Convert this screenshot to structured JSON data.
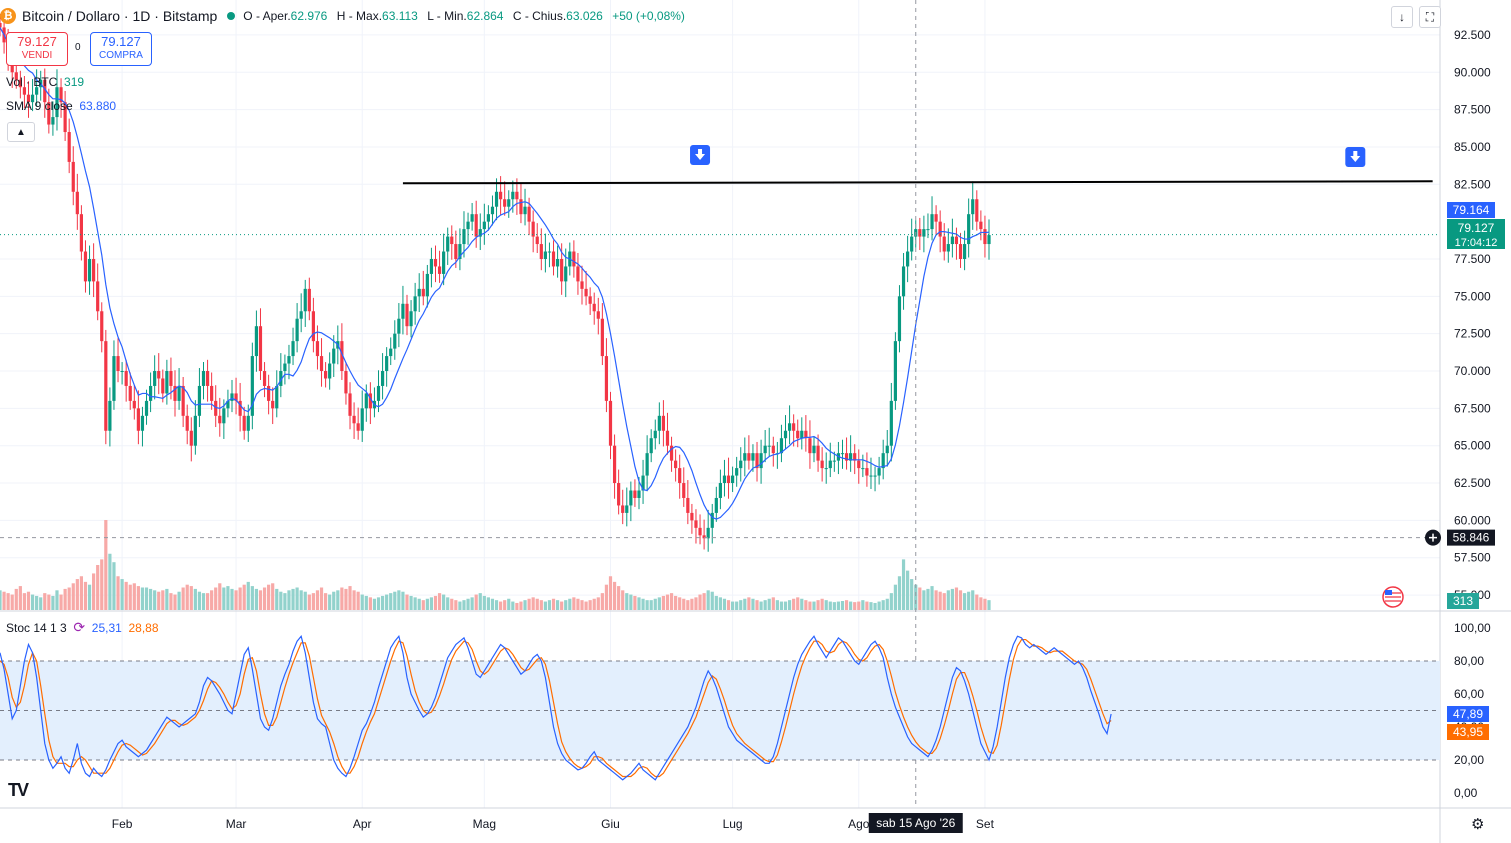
{
  "header": {
    "symbol": "Bitcoin / Dollaro · 1D · Bitstamp",
    "o_label": "O - Aper.",
    "o_value": "62.976",
    "h_label": "H - Max.",
    "h_value": "63.113",
    "l_label": "L - Min.",
    "l_value": "62.864",
    "c_label": "C - Chius.",
    "c_value": "63.026",
    "change": "+50 (+0,08%)"
  },
  "trade": {
    "sell_price": "79.127",
    "sell_label": "VENDI",
    "buy_price": "79.127",
    "buy_label": "COMPRA",
    "spread": "0"
  },
  "indicators": {
    "vol_label": "Vol · BTC",
    "vol_value": "319",
    "sma_label": "SMA 9 close",
    "sma_value": "63.880",
    "stoch_label": "Stoc 14 1 3",
    "stoch_k": "25,31",
    "stoch_d": "28,88"
  },
  "colors": {
    "up": "#089981",
    "down": "#f23645",
    "sma": "#2962ff",
    "stoch_k": "#2962ff",
    "stoch_d": "#ff6d00",
    "stoch_band": "#e3effd"
  },
  "price_axis": [
    "92.500",
    "90.000",
    "87.500",
    "85.000",
    "82.500",
    "77.500",
    "75.000",
    "72.500",
    "70.000",
    "67.500",
    "65.000",
    "62.500",
    "60.000",
    "57.500",
    "55.000"
  ],
  "stoch_axis": [
    "100,00",
    "80,00",
    "60,00",
    "40,00",
    "20,00",
    "0,00"
  ],
  "time_axis": [
    "Feb",
    "Mar",
    "Apr",
    "Mag",
    "Giu",
    "Lug",
    "Ago",
    "Set"
  ],
  "badges": {
    "sma_price": "79.164",
    "last_price": "79.127",
    "countdown": "17:04:12",
    "crosshair_price": "58.846",
    "volume": "313",
    "stoch_k": "47,89",
    "stoch_d": "43,95",
    "crosshair_date": "sab 15 Ago '26"
  },
  "chart_data": {
    "type": "candlestick",
    "resistance_level": 82500,
    "price_range": [
      54000,
      93500
    ],
    "stoch_range": [
      0,
      100
    ],
    "stoch_levels": [
      80,
      50,
      20
    ],
    "months": [
      {
        "label": "Feb",
        "day": 30
      },
      {
        "label": "Mar",
        "day": 58
      },
      {
        "label": "Apr",
        "day": 89
      },
      {
        "label": "Mag",
        "day": 119
      },
      {
        "label": "Giu",
        "day": 150
      },
      {
        "label": "Lug",
        "day": 180
      },
      {
        "label": "Ago",
        "day": 211
      },
      {
        "label": "Set",
        "day": 242
      }
    ],
    "crosshair_day": 225,
    "crosshair_price": 58846,
    "closes": [
      93000,
      92000,
      91000,
      90000,
      89500,
      89000,
      88500,
      88000,
      88500,
      89000,
      89500,
      88000,
      86500,
      87000,
      89000,
      88000,
      86000,
      84000,
      82000,
      80500,
      78000,
      76000,
      77500,
      76000,
      74000,
      72000,
      66000,
      68000,
      71000,
      70000,
      70000,
      69000,
      68000,
      67500,
      66000,
      67000,
      68000,
      69000,
      70000,
      69500,
      68500,
      70000,
      69000,
      68000,
      69000,
      67000,
      66000,
      65000,
      67000,
      69000,
      70000,
      69000,
      68000,
      67000,
      66500,
      67500,
      68000,
      68500,
      68000,
      67000,
      66000,
      67000,
      71000,
      73000,
      70000,
      69000,
      68000,
      67500,
      69000,
      70000,
      70500,
      71000,
      72000,
      73500,
      74000,
      75500,
      74000,
      72000,
      71000,
      70000,
      69500,
      70500,
      71500,
      72000,
      70000,
      68500,
      67000,
      66500,
      66000,
      67500,
      68500,
      67500,
      68000,
      69000,
      70000,
      71000,
      71500,
      72500,
      73500,
      74500,
      73000,
      74000,
      75000,
      75500,
      75000,
      76500,
      77500,
      77000,
      76500,
      78000,
      79000,
      78500,
      77500,
      78500,
      79500,
      80000,
      80500,
      79000,
      79500,
      80000,
      80500,
      81000,
      82000,
      81500,
      81000,
      81500,
      82000,
      81500,
      80500,
      81000,
      80000,
      79000,
      78500,
      77500,
      78000,
      78000,
      77000,
      77500,
      76000,
      77000,
      78000,
      77000,
      76000,
      75500,
      75000,
      74500,
      74000,
      73500,
      71000,
      68000,
      65000,
      62500,
      61000,
      60500,
      61000,
      62000,
      61500,
      62000,
      63000,
      64500,
      65500,
      66000,
      67000,
      66000,
      65000,
      64000,
      63500,
      62500,
      61500,
      60500,
      60000,
      59500,
      59000,
      58800,
      59500,
      60500,
      61500,
      62500,
      63000,
      62500,
      63000,
      63500,
      64000,
      64500,
      64000,
      64500,
      63500,
      64500,
      65000,
      65000,
      64500,
      64500,
      65500,
      66000,
      66500,
      66000,
      65500,
      66000,
      65500,
      64500,
      65000,
      64000,
      63500,
      63500,
      64000,
      64000,
      64500,
      64500,
      64000,
      64500,
      64000,
      63500,
      63500,
      63000,
      63000,
      63000,
      63500,
      64500,
      65000,
      68000,
      72000,
      75000,
      77000,
      78000,
      79000,
      79500,
      79000,
      79500,
      79500,
      80500,
      80000,
      79000,
      78000,
      78500,
      79000,
      78500,
      77500,
      78500,
      80500,
      81500,
      80000,
      79500,
      78500,
      79100
    ],
    "volumes": [
      70,
      65,
      60,
      55,
      75,
      85,
      60,
      65,
      55,
      50,
      45,
      60,
      55,
      50,
      70,
      55,
      75,
      80,
      95,
      110,
      120,
      100,
      90,
      130,
      160,
      180,
      320,
      200,
      170,
      120,
      110,
      100,
      90,
      95,
      85,
      80,
      80,
      75,
      70,
      65,
      70,
      75,
      60,
      55,
      65,
      80,
      90,
      85,
      75,
      65,
      60,
      60,
      70,
      80,
      95,
      80,
      85,
      75,
      70,
      80,
      90,
      100,
      85,
      75,
      70,
      80,
      90,
      95,
      75,
      65,
      60,
      70,
      75,
      80,
      70,
      65,
      55,
      60,
      70,
      80,
      60,
      55,
      65,
      70,
      80,
      75,
      85,
      70,
      65,
      55,
      50,
      45,
      40,
      45,
      50,
      55,
      60,
      65,
      70,
      65,
      55,
      50,
      45,
      40,
      35,
      40,
      45,
      50,
      60,
      55,
      45,
      40,
      35,
      30,
      35,
      40,
      45,
      55,
      60,
      50,
      45,
      40,
      35,
      30,
      35,
      40,
      30,
      25,
      30,
      35,
      40,
      45,
      40,
      35,
      30,
      35,
      40,
      35,
      30,
      35,
      40,
      45,
      40,
      35,
      30,
      35,
      40,
      45,
      60,
      90,
      120,
      100,
      85,
      70,
      60,
      55,
      50,
      45,
      40,
      35,
      35,
      40,
      45,
      50,
      55,
      60,
      50,
      45,
      40,
      35,
      40,
      45,
      55,
      60,
      70,
      65,
      50,
      45,
      40,
      35,
      30,
      30,
      35,
      40,
      45,
      40,
      35,
      30,
      35,
      40,
      45,
      35,
      30,
      30,
      35,
      40,
      45,
      40,
      35,
      30,
      30,
      35,
      40,
      35,
      30,
      28,
      30,
      32,
      35,
      30,
      28,
      30,
      35,
      30,
      28,
      25,
      30,
      35,
      40,
      60,
      90,
      120,
      180,
      140,
      110,
      90,
      80,
      70,
      75,
      85,
      70,
      65,
      60,
      70,
      75,
      80,
      70,
      60,
      65,
      70,
      55,
      45,
      40,
      35
    ],
    "stoch_k": [
      85,
      75,
      60,
      45,
      50,
      65,
      80,
      90,
      85,
      70,
      50,
      30,
      20,
      15,
      18,
      22,
      15,
      12,
      20,
      30,
      18,
      12,
      10,
      15,
      12,
      10,
      14,
      20,
      25,
      30,
      32,
      28,
      26,
      24,
      22,
      24,
      26,
      30,
      34,
      38,
      42,
      46,
      44,
      42,
      40,
      42,
      44,
      46,
      48,
      55,
      65,
      70,
      68,
      64,
      60,
      55,
      50,
      48,
      60,
      72,
      84,
      88,
      75,
      60,
      45,
      40,
      38,
      45,
      55,
      65,
      72,
      78,
      86,
      92,
      95,
      85,
      70,
      55,
      45,
      42,
      40,
      30,
      20,
      15,
      12,
      10,
      15,
      22,
      30,
      38,
      42,
      48,
      55,
      64,
      72,
      80,
      88,
      92,
      95,
      85,
      70,
      60,
      55,
      50,
      46,
      48,
      52,
      58,
      66,
      74,
      82,
      86,
      90,
      92,
      94,
      88,
      80,
      72,
      70,
      74,
      78,
      82,
      86,
      90,
      88,
      84,
      80,
      76,
      72,
      74,
      78,
      82,
      84,
      80,
      70,
      55,
      40,
      30,
      24,
      20,
      18,
      16,
      14,
      15,
      18,
      22,
      25,
      20,
      18,
      16,
      14,
      12,
      10,
      8,
      10,
      12,
      15,
      18,
      14,
      12,
      10,
      8,
      12,
      16,
      20,
      24,
      28,
      32,
      36,
      40,
      46,
      52,
      60,
      68,
      74,
      70,
      64,
      56,
      48,
      40,
      36,
      32,
      30,
      28,
      26,
      24,
      22,
      20,
      18,
      18,
      22,
      30,
      40,
      50,
      60,
      70,
      78,
      84,
      88,
      92,
      95,
      90,
      86,
      82,
      86,
      90,
      94,
      92,
      88,
      84,
      80,
      78,
      82,
      86,
      90,
      92,
      88,
      82,
      70,
      60,
      52,
      46,
      40,
      34,
      30,
      28,
      26,
      24,
      22,
      26,
      32,
      40,
      50,
      60,
      70,
      76,
      74,
      68,
      60,
      50,
      40,
      30,
      25,
      20,
      28,
      40,
      55,
      70,
      82,
      90,
      95,
      94,
      90,
      88,
      90,
      88,
      86,
      84,
      86,
      88,
      86,
      84,
      82,
      80,
      78,
      80,
      76,
      70,
      62,
      55,
      48,
      40,
      36,
      47.89
    ],
    "stoch_d": [
      80,
      78,
      70,
      58,
      52,
      55,
      65,
      78,
      85,
      80,
      65,
      48,
      32,
      22,
      18,
      18,
      18,
      16,
      16,
      20,
      22,
      20,
      16,
      12,
      12,
      12,
      12,
      15,
      20,
      25,
      29,
      30,
      29,
      27,
      25,
      23,
      24,
      27,
      30,
      34,
      38,
      42,
      44,
      44,
      42,
      41,
      42,
      44,
      46,
      50,
      56,
      63,
      68,
      67,
      64,
      60,
      55,
      51,
      53,
      60,
      72,
      81,
      82,
      74,
      60,
      48,
      41,
      41,
      46,
      55,
      64,
      72,
      79,
      85,
      91,
      91,
      83,
      70,
      57,
      47,
      42,
      37,
      30,
      22,
      16,
      12,
      12,
      16,
      22,
      30,
      37,
      43,
      48,
      56,
      64,
      72,
      80,
      87,
      92,
      91,
      83,
      72,
      62,
      55,
      50,
      48,
      49,
      53,
      59,
      66,
      74,
      81,
      86,
      89,
      92,
      91,
      87,
      80,
      74,
      72,
      74,
      78,
      82,
      86,
      88,
      87,
      84,
      80,
      76,
      74,
      75,
      78,
      81,
      82,
      78,
      68,
      55,
      42,
      31,
      25,
      21,
      18,
      16,
      15,
      16,
      18,
      22,
      22,
      21,
      18,
      16,
      14,
      12,
      10,
      10,
      10,
      12,
      15,
      16,
      15,
      12,
      10,
      10,
      12,
      16,
      20,
      24,
      28,
      32,
      36,
      41,
      46,
      53,
      60,
      67,
      71,
      69,
      63,
      56,
      48,
      41,
      36,
      33,
      30,
      28,
      26,
      24,
      22,
      20,
      19,
      19,
      23,
      31,
      40,
      50,
      60,
      69,
      77,
      83,
      88,
      92,
      92,
      90,
      86,
      85,
      86,
      90,
      92,
      91,
      88,
      84,
      81,
      80,
      82,
      86,
      89,
      90,
      87,
      80,
      71,
      61,
      53,
      46,
      40,
      35,
      31,
      28,
      26,
      24,
      24,
      27,
      33,
      41,
      50,
      60,
      69,
      73,
      73,
      67,
      59,
      50,
      40,
      32,
      25,
      24,
      29,
      41,
      55,
      69,
      81,
      89,
      93,
      93,
      91,
      89,
      89,
      88,
      86,
      85,
      86,
      86,
      86,
      84,
      82,
      80,
      79,
      78,
      75,
      69,
      62,
      55,
      48,
      42,
      43.95
    ]
  }
}
